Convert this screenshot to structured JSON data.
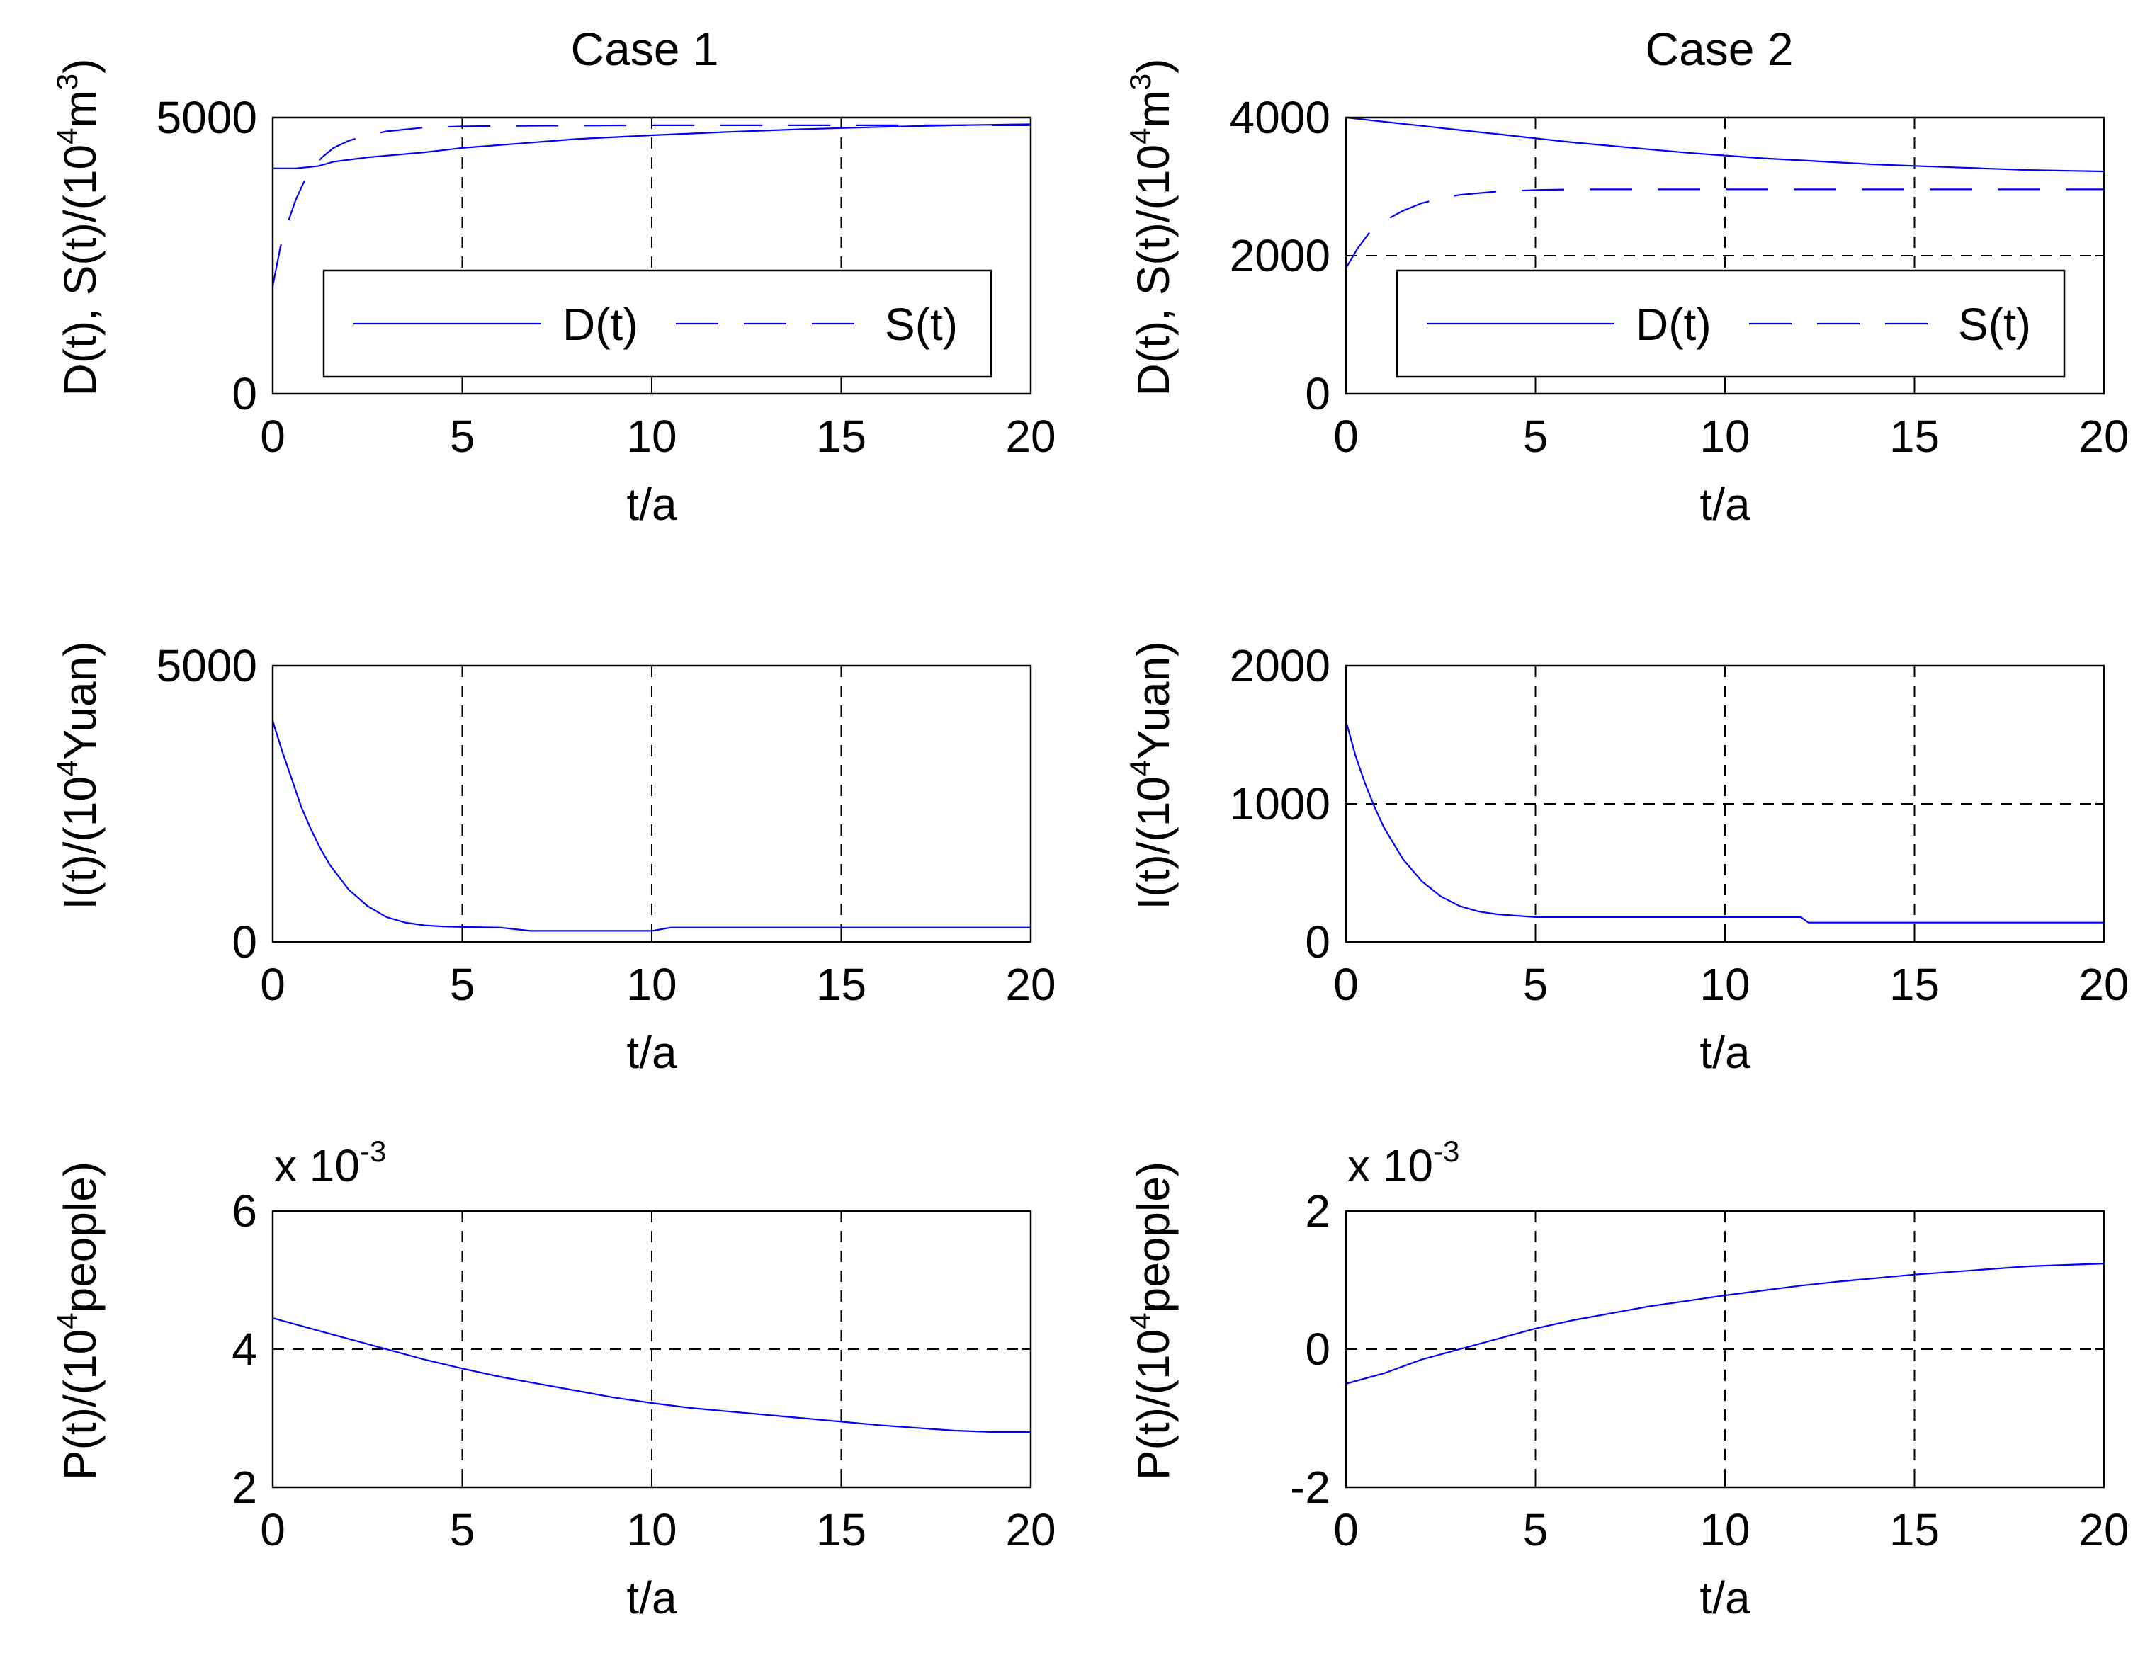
{
  "figure": {
    "colors": {
      "series": "#0000ff",
      "axis": "#000000",
      "grid": "#000000",
      "background": "#ffffff"
    },
    "panel_titles": [
      "Case 1",
      "Case 2"
    ]
  },
  "chart_data": [
    {
      "type": "line",
      "panel": "case1-ds",
      "title": "Case 1",
      "xlabel": "t/a",
      "ylabel": {
        "base": "D(t),  S(t)/(10",
        "sup": "4",
        "mid": "m",
        "sup2": "3",
        "tail": ")"
      },
      "xlim": [
        0,
        20
      ],
      "ylim": [
        0,
        5000
      ],
      "xticks": [
        0,
        5,
        10,
        15,
        20
      ],
      "yticks": [
        0,
        5000
      ],
      "grid": "x",
      "legend": {
        "position": "lower-center",
        "entries": [
          "D(t)",
          "S(t)"
        ]
      },
      "series": [
        {
          "name": "D(t)",
          "style": "solid",
          "x": [
            0,
            0.6,
            1.2,
            1.6,
            2.5,
            4,
            5,
            6.5,
            8,
            10,
            12,
            14,
            16,
            18,
            20
          ],
          "y": [
            4080,
            4080,
            4120,
            4200,
            4280,
            4370,
            4450,
            4530,
            4610,
            4680,
            4740,
            4790,
            4830,
            4860,
            4880
          ]
        },
        {
          "name": "S(t)",
          "style": "dashed",
          "x": [
            0,
            0.2,
            0.4,
            0.6,
            0.8,
            1,
            1.3,
            1.6,
            2,
            2.5,
            3,
            4,
            5,
            6,
            8,
            10,
            12,
            15,
            20
          ],
          "y": [
            1950,
            2650,
            3100,
            3500,
            3800,
            4050,
            4280,
            4450,
            4580,
            4680,
            4750,
            4820,
            4840,
            4850,
            4855,
            4860,
            4860,
            4860,
            4860
          ]
        }
      ]
    },
    {
      "type": "line",
      "panel": "case2-ds",
      "title": "Case 2",
      "xlabel": "t/a",
      "ylabel": {
        "base": "D(t),  S(t)/(10",
        "sup": "4",
        "mid": "m",
        "sup2": "3",
        "tail": ")"
      },
      "xlim": [
        0,
        20
      ],
      "ylim": [
        0,
        4000
      ],
      "xticks": [
        0,
        5,
        10,
        15,
        20
      ],
      "yticks": [
        0,
        2000,
        4000
      ],
      "grid": "both",
      "legend": {
        "position": "lower-center",
        "entries": [
          "D(t)",
          "S(t)"
        ]
      },
      "series": [
        {
          "name": "D(t)",
          "style": "solid",
          "x": [
            0,
            1,
            2,
            3,
            4,
            5,
            6,
            7,
            8,
            9,
            10,
            11,
            12,
            13,
            14,
            15,
            16,
            17,
            18,
            19,
            20
          ],
          "y": [
            4000,
            3940,
            3880,
            3820,
            3760,
            3700,
            3640,
            3590,
            3540,
            3490,
            3450,
            3410,
            3380,
            3350,
            3320,
            3300,
            3280,
            3260,
            3240,
            3230,
            3220
          ]
        },
        {
          "name": "S(t)",
          "style": "dashed",
          "x": [
            0,
            0.3,
            0.6,
            1,
            1.5,
            2,
            2.5,
            3,
            4,
            5,
            6,
            8,
            10,
            12,
            15,
            20
          ],
          "y": [
            1820,
            2100,
            2320,
            2500,
            2650,
            2760,
            2830,
            2880,
            2930,
            2950,
            2960,
            2960,
            2960,
            2960,
            2960,
            2960
          ]
        }
      ]
    },
    {
      "type": "line",
      "panel": "case1-i",
      "xlabel": "t/a",
      "ylabel": {
        "base": "I(t)/(10",
        "sup": "4",
        "tail": "Yuan)"
      },
      "xlim": [
        0,
        20
      ],
      "ylim": [
        0,
        5000
      ],
      "xticks": [
        0,
        5,
        10,
        15,
        20
      ],
      "yticks": [
        0,
        5000
      ],
      "grid": "x",
      "series": [
        {
          "name": "I(t)",
          "style": "solid",
          "x": [
            0,
            0.25,
            0.5,
            0.75,
            1,
            1.25,
            1.5,
            2,
            2.5,
            3,
            3.5,
            4,
            4.5,
            5,
            6,
            6.8,
            8,
            10,
            10.5,
            12,
            15,
            20
          ],
          "y": [
            4000,
            3450,
            2950,
            2450,
            2050,
            1700,
            1400,
            950,
            650,
            450,
            350,
            300,
            280,
            270,
            260,
            200,
            200,
            200,
            260,
            260,
            260,
            260
          ]
        }
      ]
    },
    {
      "type": "line",
      "panel": "case2-i",
      "xlabel": "t/a",
      "ylabel": {
        "base": "I(t)/(10",
        "sup": "4",
        "tail": "Yuan)"
      },
      "xlim": [
        0,
        20
      ],
      "ylim": [
        0,
        2000
      ],
      "xticks": [
        0,
        5,
        10,
        15,
        20
      ],
      "yticks": [
        0,
        1000,
        2000
      ],
      "grid": "both",
      "series": [
        {
          "name": "I(t)",
          "style": "solid",
          "x": [
            0,
            0.25,
            0.5,
            0.75,
            1,
            1.5,
            2,
            2.5,
            3,
            3.5,
            4,
            4.5,
            5,
            8,
            10,
            12,
            12.2,
            15,
            20
          ],
          "y": [
            1600,
            1350,
            1150,
            980,
            830,
            600,
            440,
            330,
            260,
            220,
            200,
            190,
            180,
            180,
            180,
            180,
            140,
            140,
            140
          ]
        }
      ]
    },
    {
      "type": "line",
      "panel": "case1-p",
      "xlabel": "t/a",
      "ylabel": {
        "base": "P(t)/(10",
        "sup": "4",
        "tail": "people)"
      },
      "multiplier": {
        "text": "x 10",
        "sup": "-3"
      },
      "xlim": [
        0,
        20
      ],
      "ylim": [
        2,
        6
      ],
      "xticks": [
        0,
        5,
        10,
        15,
        20
      ],
      "yticks": [
        2,
        4,
        6
      ],
      "grid": "both",
      "series": [
        {
          "name": "P(t)",
          "style": "solid",
          "x": [
            0,
            1,
            2,
            3,
            4,
            5,
            6,
            7,
            8,
            9,
            10,
            11,
            12,
            13,
            14,
            15,
            16,
            17,
            18,
            19,
            20
          ],
          "y": [
            4.45,
            4.3,
            4.15,
            4.0,
            3.85,
            3.72,
            3.6,
            3.5,
            3.4,
            3.3,
            3.22,
            3.15,
            3.1,
            3.05,
            3.0,
            2.95,
            2.9,
            2.86,
            2.82,
            2.8,
            2.8
          ]
        }
      ]
    },
    {
      "type": "line",
      "panel": "case2-p",
      "xlabel": "t/a",
      "ylabel": {
        "base": "P(t)/(10",
        "sup": "4",
        "tail": "people)"
      },
      "multiplier": {
        "text": "x 10",
        "sup": "-3"
      },
      "xlim": [
        0,
        20
      ],
      "ylim": [
        -2,
        2
      ],
      "xticks": [
        0,
        5,
        10,
        15,
        20
      ],
      "yticks": [
        -2,
        0,
        2
      ],
      "grid": "both",
      "series": [
        {
          "name": "P(t)",
          "style": "solid",
          "x": [
            0,
            1,
            2,
            3,
            4,
            5,
            6,
            7,
            8,
            9,
            10,
            11,
            12,
            13,
            14,
            15,
            16,
            17,
            18,
            19,
            20
          ],
          "y": [
            -0.5,
            -0.35,
            -0.15,
            0.0,
            0.15,
            0.3,
            0.42,
            0.52,
            0.62,
            0.7,
            0.78,
            0.85,
            0.92,
            0.98,
            1.03,
            1.08,
            1.12,
            1.16,
            1.2,
            1.22,
            1.24
          ]
        }
      ]
    }
  ]
}
